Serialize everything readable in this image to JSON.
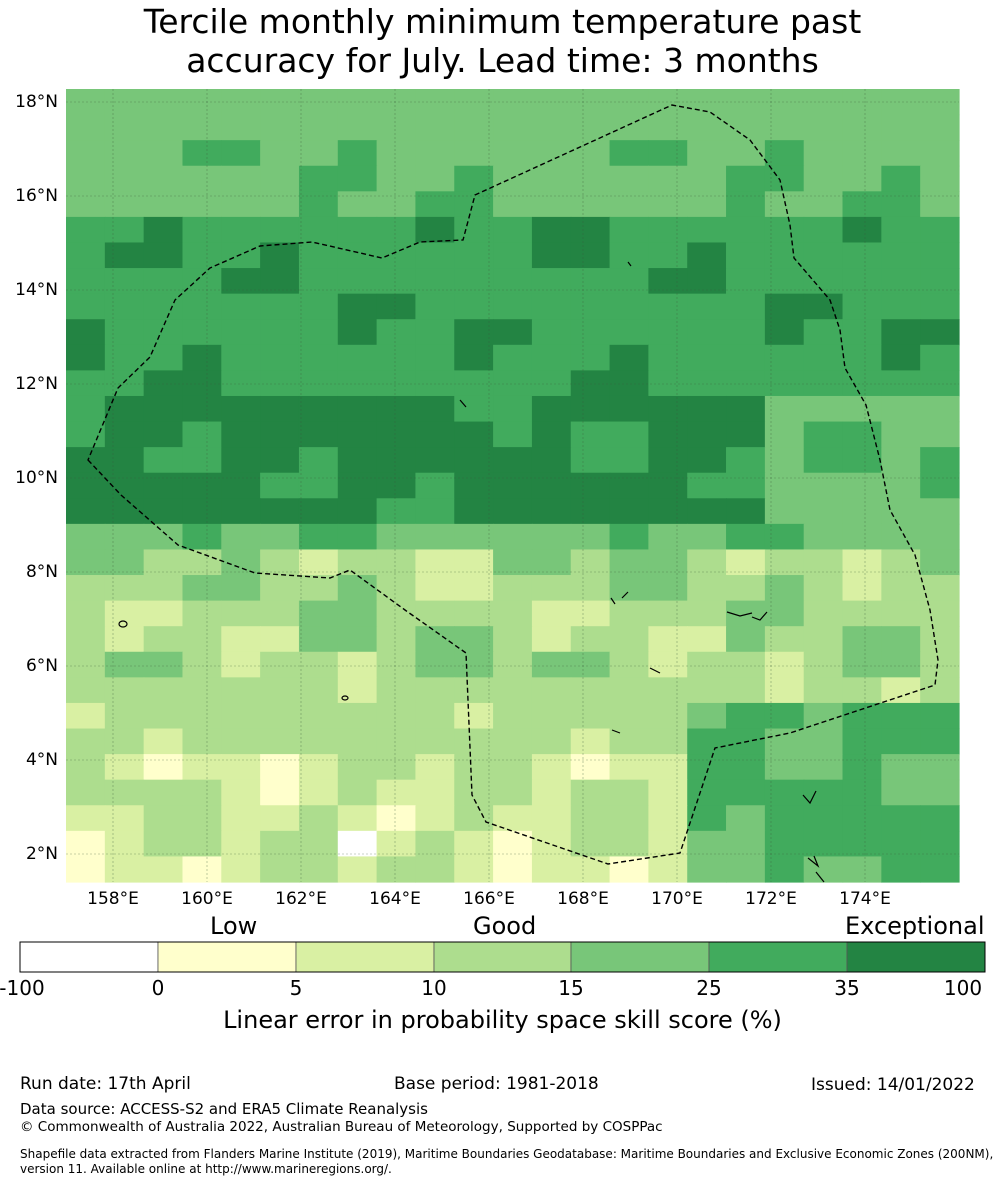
{
  "title_line1": "Tercile monthly minimum temperature past",
  "title_line2": "accuracy for July. Lead time: 3 months",
  "lat_ticks": [
    "18°N",
    "16°N",
    "14°N",
    "12°N",
    "10°N",
    "8°N",
    "6°N",
    "4°N",
    "2°N"
  ],
  "lon_ticks": [
    "158°E",
    "160°E",
    "162°E",
    "164°E",
    "166°E",
    "168°E",
    "170°E",
    "172°E",
    "174°E"
  ],
  "colorbar": {
    "categories": [
      "Low",
      "Good",
      "Exceptional"
    ],
    "bounds": [
      "-100",
      "0",
      "5",
      "10",
      "15",
      "25",
      "35",
      "100"
    ],
    "colors": [
      "#ffffff",
      "#ffffcc",
      "#d9f0a3",
      "#addd8e",
      "#78c679",
      "#41ab5d",
      "#238443"
    ],
    "label": "Linear error in probability space skill score (%)"
  },
  "footer": {
    "run_date": "Run date: 17th April",
    "base_period": "Base period: 1981-2018",
    "issued": "Issued: 14/01/2022",
    "data_source": "Data source: ACCESS-S2 and ERA5 Climate Reanalysis",
    "copyright": "© Commonwealth of Australia 2022, Australian Bureau of Meteorology, Supported by COSPPac",
    "shapefile_line1": "Shapefile data extracted from Flanders Marine Institute (2019), Maritime Boundaries Geodatabase: Maritime Boundaries and Exclusive Economic Zones (200NM),",
    "shapefile_line2": "version 11. Available online at http://www.marineregions.org/."
  }
}
